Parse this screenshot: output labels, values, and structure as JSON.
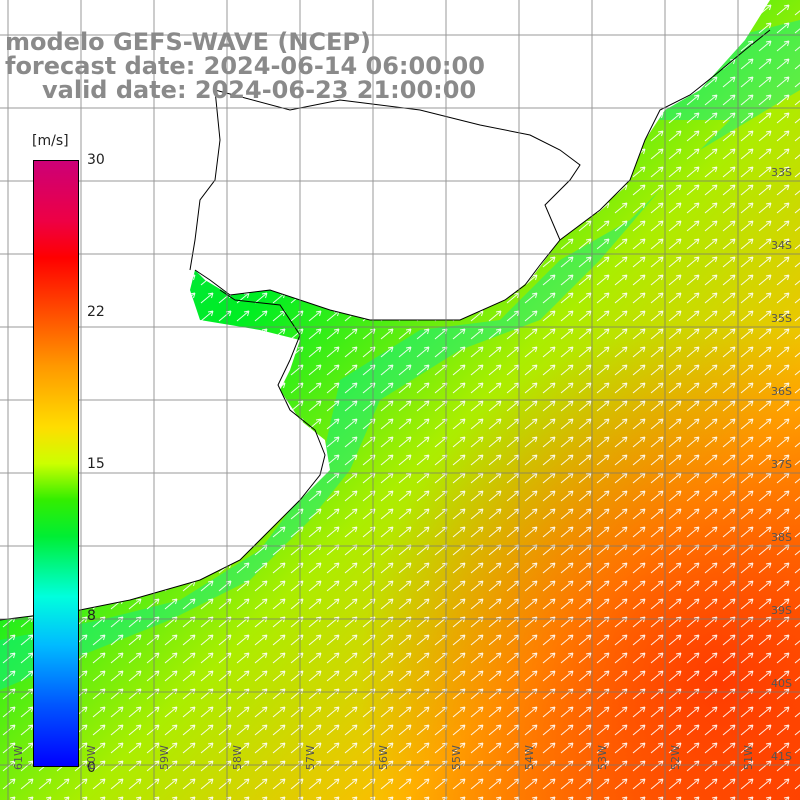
{
  "titles": {
    "line1": "modelo GEFS-WAVE (NCEP)",
    "line2": "forecast date: 2024-06-14 06:00:00",
    "line3": "valid date: 2024-06-23 21:00:00"
  },
  "colorbar": {
    "unit": "[m/s]",
    "ticks": [
      "30",
      "22",
      "15",
      "8",
      "0"
    ],
    "colors": [
      "#cc0077",
      "#ff0000",
      "#ff9900",
      "#ffdd00",
      "#33ee00",
      "#00ffdd",
      "#00bbff",
      "#0000ff"
    ]
  },
  "map": {
    "lon_labels": [
      "61W",
      "60W",
      "59W",
      "58W",
      "57W",
      "56W",
      "55W",
      "54W",
      "53W",
      "52W",
      "51W"
    ],
    "lat_labels": [
      "33S",
      "34S",
      "35S",
      "36S",
      "37S",
      "38S",
      "39S",
      "40S",
      "41S"
    ],
    "land_color": "#ffffff",
    "coast_color": "#000000",
    "grid_color": "#777777",
    "arrow_color": "#ffffff"
  }
}
